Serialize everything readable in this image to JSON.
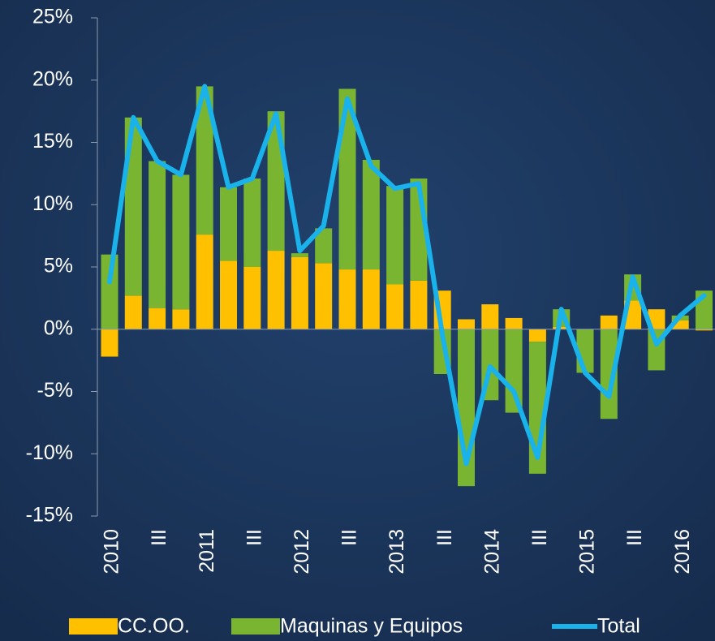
{
  "chart_data": {
    "type": "bar",
    "categories": [
      "2010",
      null,
      "III",
      null,
      "2011",
      null,
      "III",
      null,
      "2012",
      null,
      "III",
      null,
      "2013",
      null,
      "III",
      null,
      "2014",
      null,
      "III",
      null,
      "2015",
      null,
      "III",
      null,
      "2016",
      null
    ],
    "series": [
      {
        "name": "CC.OO.",
        "color": "#ffc000",
        "values": [
          -2.2,
          2.7,
          1.7,
          1.6,
          7.6,
          5.5,
          5.0,
          6.3,
          5.8,
          5.3,
          4.8,
          4.8,
          3.6,
          3.9,
          3.1,
          0.8,
          2.0,
          0.9,
          -1.0,
          0.2,
          0.0,
          1.1,
          2.3,
          1.6,
          0.7,
          -0.1
        ]
      },
      {
        "name": "Maquinas y Equipos",
        "color": "#7ab532",
        "values": [
          6.0,
          14.3,
          11.8,
          10.8,
          11.9,
          5.9,
          7.1,
          11.2,
          0.3,
          2.8,
          14.5,
          8.8,
          7.9,
          8.2,
          -3.6,
          -12.6,
          -5.7,
          -6.7,
          -10.6,
          1.4,
          -3.5,
          -7.2,
          2.1,
          -3.3,
          0.4,
          3.1
        ]
      },
      {
        "name": "Total",
        "color": "#1ab2eb",
        "type": "line",
        "values": [
          3.8,
          17.0,
          13.5,
          12.4,
          19.5,
          11.4,
          12.1,
          17.3,
          6.3,
          8.3,
          18.5,
          13.1,
          11.3,
          11.7,
          -0.5,
          -10.8,
          -3.0,
          -5.0,
          -10.3,
          1.6,
          -3.5,
          -5.4,
          4.2,
          -1.2,
          1.1,
          2.7
        ]
      }
    ],
    "stacked": true,
    "ylim": [
      -15,
      25
    ],
    "yticks": [
      {
        "value": -15,
        "label": "-15%"
      },
      {
        "value": -10,
        "label": "-10%"
      },
      {
        "value": -5,
        "label": "-5%"
      },
      {
        "value": 0,
        "label": "0%"
      },
      {
        "value": 5,
        "label": "5%"
      },
      {
        "value": 10,
        "label": "10%"
      },
      {
        "value": 15,
        "label": "15%"
      },
      {
        "value": 20,
        "label": "20%"
      },
      {
        "value": 25,
        "label": "25%"
      }
    ]
  }
}
